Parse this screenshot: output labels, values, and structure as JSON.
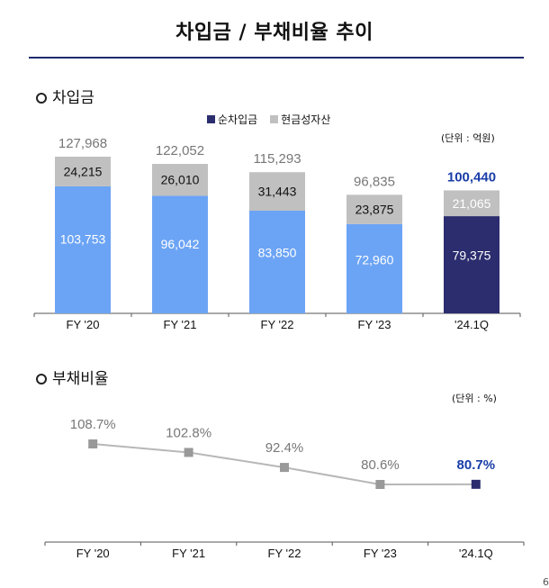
{
  "title": "차입금 / 부채비율 추이",
  "page_number": "6",
  "colors": {
    "net_debt": "#2b2d6e",
    "cash": "#c0c0c0",
    "bar_main": "#6ca4f5",
    "accent": "#1a3ea8",
    "ratio_line": "#b7b7b7",
    "ratio_marker": "#999999"
  },
  "chart_data": [
    {
      "type": "bar",
      "section_title": "차입금",
      "stacked": true,
      "unit": "(단위 : 억원)",
      "categories": [
        "FY '20",
        "FY '21",
        "FY '22",
        "FY '23",
        "'24.1Q"
      ],
      "legend": [
        "순차입금",
        "현금성자산"
      ],
      "series": [
        {
          "name": "순차입금",
          "values": [
            103753,
            96042,
            83850,
            72960,
            79375
          ]
        },
        {
          "name": "현금성자산",
          "values": [
            24215,
            26010,
            31443,
            23875,
            21065
          ]
        }
      ],
      "totals": [
        127968,
        122052,
        115293,
        96835,
        100440
      ],
      "labels": {
        "net_debt": [
          "103,753",
          "96,042",
          "83,850",
          "72,960",
          "79,375"
        ],
        "cash": [
          "24,215",
          "26,010",
          "31,443",
          "23,875",
          "21,065"
        ],
        "totals": [
          "127,968",
          "122,052",
          "115,293",
          "96,835",
          "100,440"
        ]
      },
      "ylim": [
        0,
        140000
      ]
    },
    {
      "type": "line",
      "section_title": "부채비율",
      "unit": "(단위 : %)",
      "categories": [
        "FY '20",
        "FY '21",
        "FY '22",
        "FY '23",
        "'24.1Q"
      ],
      "series": [
        {
          "name": "부채비율",
          "values": [
            108.7,
            102.8,
            92.4,
            80.6,
            80.7
          ]
        }
      ],
      "labels": [
        "108.7%",
        "102.8%",
        "92.4%",
        "80.6%",
        "80.7%"
      ],
      "ylim": [
        60,
        120
      ]
    }
  ]
}
